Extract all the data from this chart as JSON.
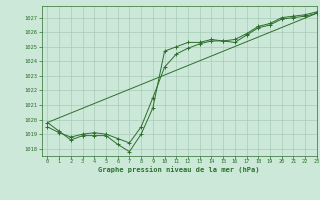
{
  "title": "Graphe pression niveau de la mer (hPa)",
  "background_color": "#cce8d8",
  "grid_color": "#aaccbb",
  "line_color": "#2d6e2d",
  "xlim": [
    -0.5,
    23
  ],
  "ylim": [
    1017.5,
    1027.8
  ],
  "xticks": [
    0,
    1,
    2,
    3,
    4,
    5,
    6,
    7,
    8,
    9,
    10,
    11,
    12,
    13,
    14,
    15,
    16,
    17,
    18,
    19,
    20,
    21,
    22,
    23
  ],
  "yticks": [
    1018,
    1019,
    1020,
    1021,
    1022,
    1023,
    1024,
    1025,
    1026,
    1027
  ],
  "series1_x": [
    0,
    1,
    2,
    3,
    4,
    5,
    6,
    7,
    8,
    9,
    10,
    11,
    12,
    13,
    14,
    15,
    16,
    17,
    18,
    19,
    20,
    21,
    22,
    23
  ],
  "series1_y": [
    1019.8,
    1019.2,
    1018.6,
    1018.9,
    1018.9,
    1018.9,
    1018.3,
    1017.8,
    1019.0,
    1020.8,
    1024.7,
    1025.0,
    1025.3,
    1025.3,
    1025.5,
    1025.4,
    1025.3,
    1025.8,
    1026.3,
    1026.5,
    1026.9,
    1027.0,
    1027.1,
    1027.3
  ],
  "series2_x": [
    0,
    1,
    2,
    3,
    4,
    5,
    6,
    7,
    8,
    9,
    10,
    11,
    12,
    13,
    14,
    15,
    16,
    17,
    18,
    19,
    20,
    21,
    22,
    23
  ],
  "series2_y": [
    1019.5,
    1019.1,
    1018.8,
    1019.0,
    1019.1,
    1019.0,
    1018.7,
    1018.4,
    1019.5,
    1021.5,
    1023.6,
    1024.5,
    1024.9,
    1025.2,
    1025.4,
    1025.4,
    1025.5,
    1025.9,
    1026.4,
    1026.6,
    1027.0,
    1027.1,
    1027.2,
    1027.4
  ],
  "series3_x": [
    0,
    23
  ],
  "series3_y": [
    1019.8,
    1027.3
  ]
}
